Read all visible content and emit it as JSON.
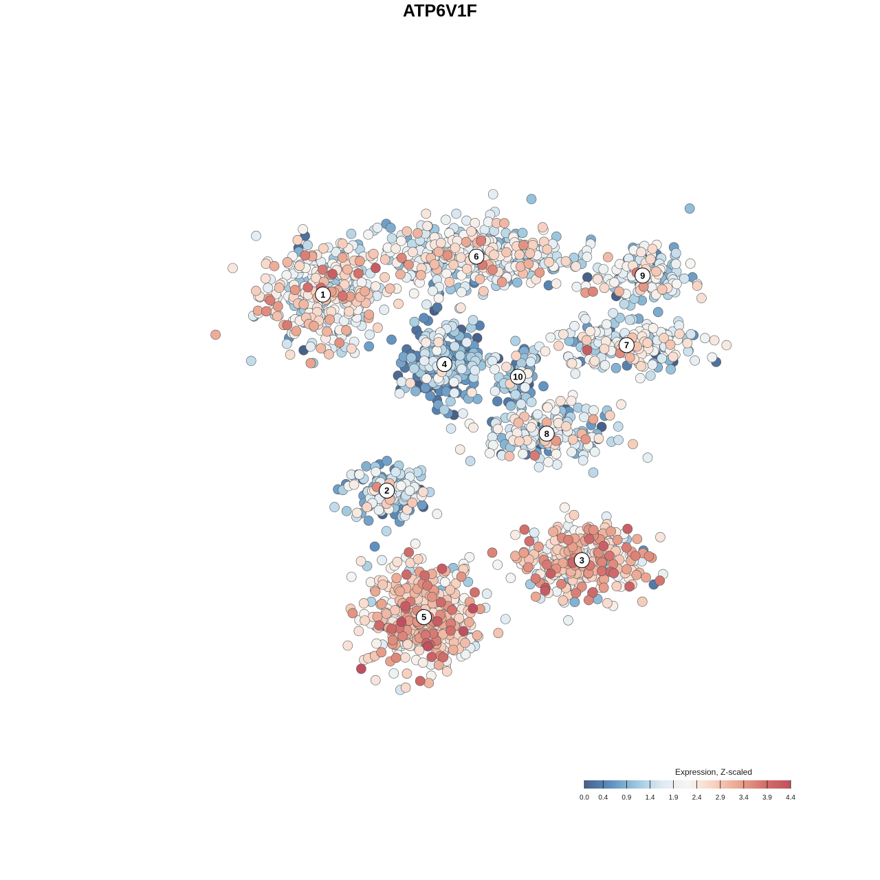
{
  "chart_data": {
    "type": "scatter",
    "title": "ATP6V1F",
    "color_scale": {
      "title": "Expression, Z-scaled",
      "min": 0.0,
      "max": 4.4,
      "ticks": [
        "0.0",
        "0.4",
        "0.9",
        "1.4",
        "1.9",
        "2.4",
        "2.9",
        "3.4",
        "3.9",
        "4.4"
      ],
      "colors": [
        "#48618a",
        "#5d8fbf",
        "#9bc6de",
        "#dceaf3",
        "#f7f5f2",
        "#f8d3c2",
        "#eaa48e",
        "#d36f6c",
        "#c0505f"
      ]
    },
    "clusters": [
      {
        "label": "1",
        "x": 0.29,
        "y": 0.73,
        "mean_expression": 2.1
      },
      {
        "label": "2",
        "x": 0.39,
        "y": 0.42,
        "mean_expression": 1.2
      },
      {
        "label": "3",
        "x": 0.695,
        "y": 0.31,
        "mean_expression": 2.5
      },
      {
        "label": "4",
        "x": 0.48,
        "y": 0.62,
        "mean_expression": 0.6
      },
      {
        "label": "5",
        "x": 0.448,
        "y": 0.22,
        "mean_expression": 2.6
      },
      {
        "label": "6",
        "x": 0.53,
        "y": 0.79,
        "mean_expression": 1.8
      },
      {
        "label": "7",
        "x": 0.765,
        "y": 0.65,
        "mean_expression": 1.7
      },
      {
        "label": "8",
        "x": 0.64,
        "y": 0.51,
        "mean_expression": 1.5
      },
      {
        "label": "9",
        "x": 0.79,
        "y": 0.76,
        "mean_expression": 1.7
      },
      {
        "label": "10",
        "x": 0.595,
        "y": 0.6,
        "mean_expression": 0.9
      }
    ]
  }
}
